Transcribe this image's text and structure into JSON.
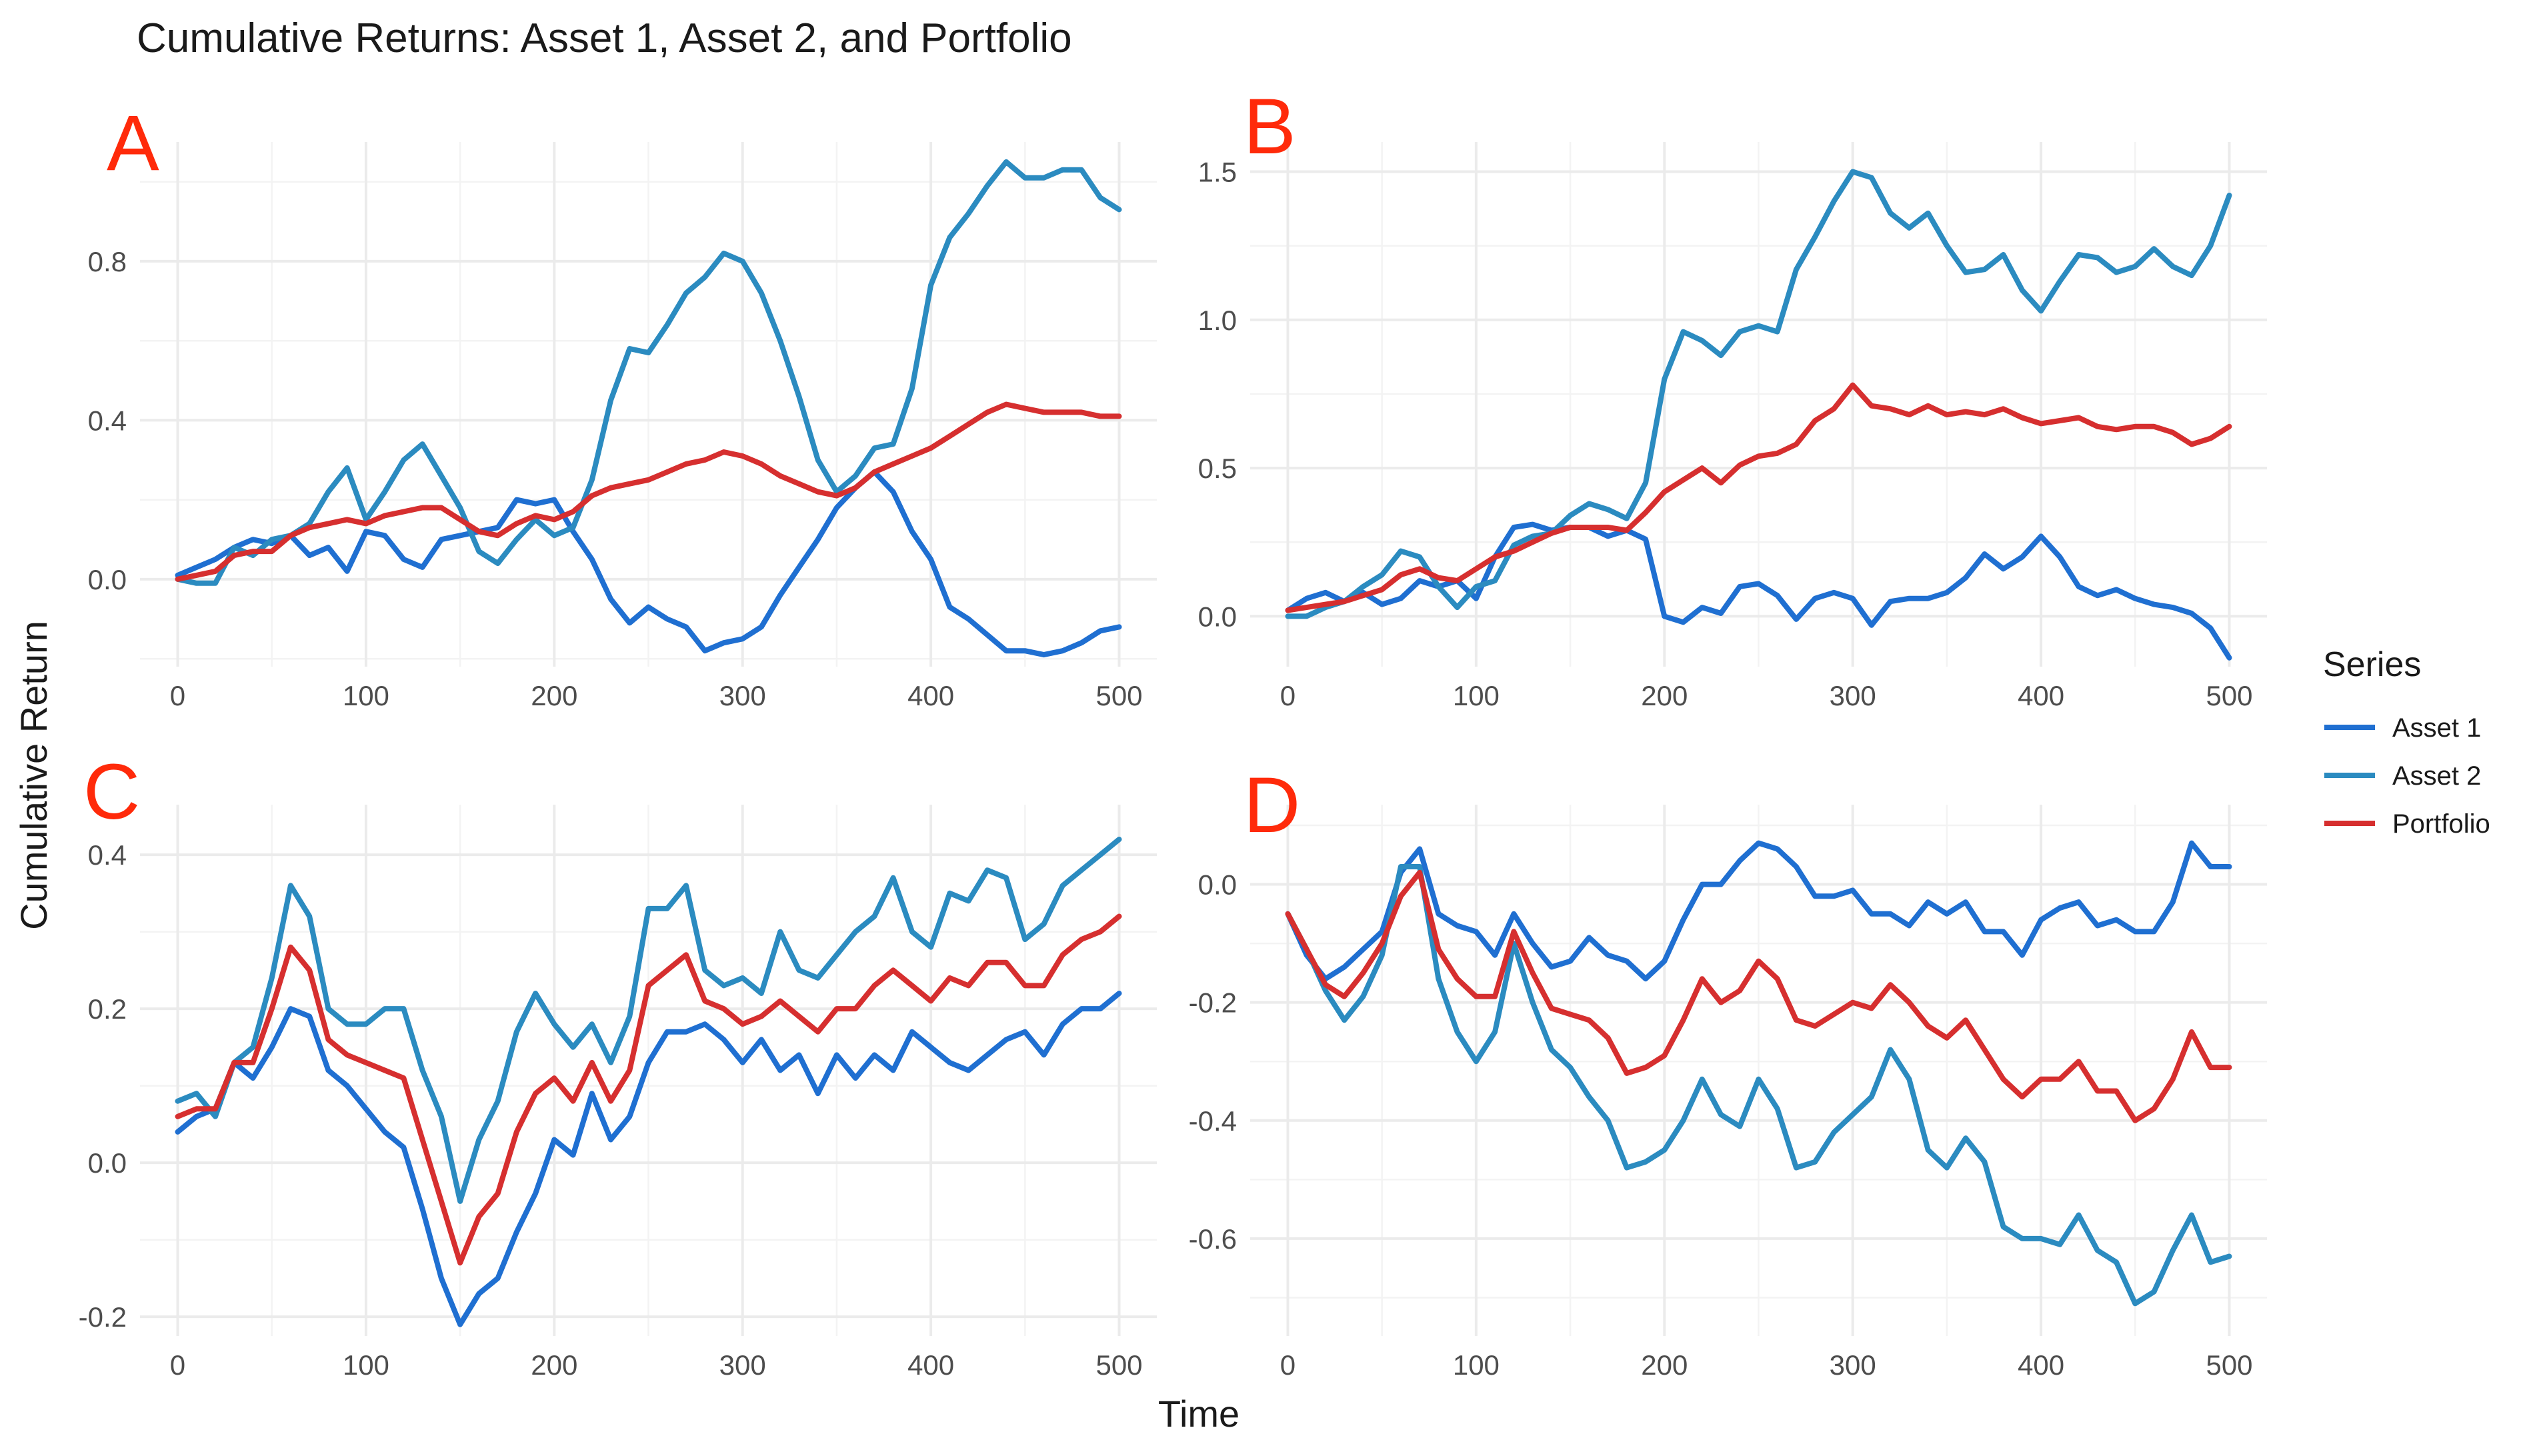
{
  "title": "Cumulative Returns: Asset 1, Asset 2, and Portfolio",
  "xlabel": "Time",
  "ylabel": "Cumulative Return",
  "legend": {
    "title": "Series",
    "placement": "right",
    "items": [
      {
        "name": "Asset 1",
        "color": "#1f6fd1"
      },
      {
        "name": "Asset 2",
        "color": "#2b8bc0"
      },
      {
        "name": "Portfolio",
        "color": "#d62f2f"
      }
    ]
  },
  "chart_data": [
    {
      "type": "line",
      "panel": "A",
      "xlim": [
        -20,
        520
      ],
      "ylim": [
        -0.22,
        1.1
      ],
      "x_ticks": [
        0,
        100,
        200,
        300,
        400,
        500
      ],
      "y_ticks": [
        0.0,
        0.4,
        0.8
      ],
      "y_tick_labels": [
        "0.0",
        "0.4",
        "0.8"
      ],
      "grid": true,
      "x": [
        0,
        10,
        20,
        30,
        40,
        50,
        60,
        70,
        80,
        90,
        100,
        110,
        120,
        130,
        140,
        150,
        160,
        170,
        180,
        190,
        200,
        210,
        220,
        230,
        240,
        250,
        260,
        270,
        280,
        290,
        300,
        310,
        320,
        330,
        340,
        350,
        360,
        370,
        380,
        390,
        400,
        410,
        420,
        430,
        440,
        450,
        460,
        470,
        480,
        490,
        500
      ],
      "series": [
        {
          "name": "Asset 1",
          "values": [
            0.01,
            0.03,
            0.05,
            0.08,
            0.1,
            0.09,
            0.11,
            0.06,
            0.08,
            0.02,
            0.12,
            0.11,
            0.05,
            0.03,
            0.1,
            0.11,
            0.12,
            0.13,
            0.2,
            0.19,
            0.2,
            0.12,
            0.05,
            -0.05,
            -0.11,
            -0.07,
            -0.1,
            -0.12,
            -0.18,
            -0.16,
            -0.15,
            -0.12,
            -0.04,
            0.03,
            0.1,
            0.18,
            0.23,
            0.27,
            0.22,
            0.12,
            0.05,
            -0.07,
            -0.1,
            -0.14,
            -0.18,
            -0.18,
            -0.19,
            -0.18,
            -0.16,
            -0.13,
            -0.12
          ]
        },
        {
          "name": "Asset 2",
          "values": [
            0.0,
            -0.01,
            -0.01,
            0.08,
            0.06,
            0.1,
            0.11,
            0.14,
            0.22,
            0.28,
            0.15,
            0.22,
            0.3,
            0.34,
            0.26,
            0.18,
            0.07,
            0.04,
            0.1,
            0.15,
            0.11,
            0.13,
            0.25,
            0.45,
            0.58,
            0.57,
            0.64,
            0.72,
            0.76,
            0.82,
            0.8,
            0.72,
            0.6,
            0.46,
            0.3,
            0.22,
            0.26,
            0.33,
            0.34,
            0.48,
            0.74,
            0.86,
            0.92,
            0.99,
            1.05,
            1.01,
            1.01,
            1.03,
            1.03,
            0.96,
            0.93
          ]
        },
        {
          "name": "Portfolio",
          "values": [
            0.0,
            0.01,
            0.02,
            0.06,
            0.07,
            0.07,
            0.11,
            0.13,
            0.14,
            0.15,
            0.14,
            0.16,
            0.17,
            0.18,
            0.18,
            0.15,
            0.12,
            0.11,
            0.14,
            0.16,
            0.15,
            0.17,
            0.21,
            0.23,
            0.24,
            0.25,
            0.27,
            0.29,
            0.3,
            0.32,
            0.31,
            0.29,
            0.26,
            0.24,
            0.22,
            0.21,
            0.23,
            0.27,
            0.29,
            0.31,
            0.33,
            0.36,
            0.39,
            0.42,
            0.44,
            0.43,
            0.42,
            0.42,
            0.42,
            0.41,
            0.41
          ]
        }
      ]
    },
    {
      "type": "line",
      "panel": "B",
      "xlim": [
        -20,
        520
      ],
      "ylim": [
        -0.17,
        1.6
      ],
      "x_ticks": [
        0,
        100,
        200,
        300,
        400,
        500
      ],
      "y_ticks": [
        0.0,
        0.5,
        1.0,
        1.5
      ],
      "y_tick_labels": [
        "0.0",
        "0.5",
        "1.0",
        "1.5"
      ],
      "grid": true,
      "x": [
        0,
        10,
        20,
        30,
        40,
        50,
        60,
        70,
        80,
        90,
        100,
        110,
        120,
        130,
        140,
        150,
        160,
        170,
        180,
        190,
        200,
        210,
        220,
        230,
        240,
        250,
        260,
        270,
        280,
        290,
        300,
        310,
        320,
        330,
        340,
        350,
        360,
        370,
        380,
        390,
        400,
        410,
        420,
        430,
        440,
        450,
        460,
        470,
        480,
        490,
        500
      ],
      "series": [
        {
          "name": "Asset 1",
          "values": [
            0.02,
            0.06,
            0.08,
            0.05,
            0.08,
            0.04,
            0.06,
            0.12,
            0.1,
            0.12,
            0.06,
            0.2,
            0.3,
            0.31,
            0.29,
            0.3,
            0.3,
            0.27,
            0.29,
            0.26,
            0.0,
            -0.02,
            0.03,
            0.01,
            0.1,
            0.11,
            0.07,
            -0.01,
            0.06,
            0.08,
            0.06,
            -0.03,
            0.05,
            0.06,
            0.06,
            0.08,
            0.13,
            0.21,
            0.16,
            0.2,
            0.27,
            0.2,
            0.1,
            0.07,
            0.09,
            0.06,
            0.04,
            0.03,
            0.01,
            -0.04,
            -0.14
          ]
        },
        {
          "name": "Asset 2",
          "values": [
            0.0,
            0.0,
            0.03,
            0.05,
            0.1,
            0.14,
            0.22,
            0.2,
            0.1,
            0.03,
            0.1,
            0.12,
            0.24,
            0.27,
            0.28,
            0.34,
            0.38,
            0.36,
            0.33,
            0.45,
            0.8,
            0.96,
            0.93,
            0.88,
            0.96,
            0.98,
            0.96,
            1.17,
            1.28,
            1.4,
            1.5,
            1.48,
            1.36,
            1.31,
            1.36,
            1.25,
            1.16,
            1.17,
            1.22,
            1.1,
            1.03,
            1.13,
            1.22,
            1.21,
            1.16,
            1.18,
            1.24,
            1.18,
            1.15,
            1.25,
            1.42
          ]
        },
        {
          "name": "Portfolio",
          "values": [
            0.02,
            0.03,
            0.04,
            0.05,
            0.07,
            0.09,
            0.14,
            0.16,
            0.13,
            0.12,
            0.16,
            0.2,
            0.22,
            0.25,
            0.28,
            0.3,
            0.3,
            0.3,
            0.29,
            0.35,
            0.42,
            0.46,
            0.5,
            0.45,
            0.51,
            0.54,
            0.55,
            0.58,
            0.66,
            0.7,
            0.78,
            0.71,
            0.7,
            0.68,
            0.71,
            0.68,
            0.69,
            0.68,
            0.7,
            0.67,
            0.65,
            0.66,
            0.67,
            0.64,
            0.63,
            0.64,
            0.64,
            0.62,
            0.58,
            0.6,
            0.64
          ]
        }
      ]
    },
    {
      "type": "line",
      "panel": "C",
      "xlim": [
        -20,
        520
      ],
      "ylim": [
        -0.225,
        0.465
      ],
      "x_ticks": [
        0,
        100,
        200,
        300,
        400,
        500
      ],
      "y_ticks": [
        -0.2,
        0.0,
        0.2,
        0.4
      ],
      "y_tick_labels": [
        "-0.2",
        "0.0",
        "0.2",
        "0.4"
      ],
      "grid": true,
      "x": [
        0,
        10,
        20,
        30,
        40,
        50,
        60,
        70,
        80,
        90,
        100,
        110,
        120,
        130,
        140,
        150,
        160,
        170,
        180,
        190,
        200,
        210,
        220,
        230,
        240,
        250,
        260,
        270,
        280,
        290,
        300,
        310,
        320,
        330,
        340,
        350,
        360,
        370,
        380,
        390,
        400,
        410,
        420,
        430,
        440,
        450,
        460,
        470,
        480,
        490,
        500
      ],
      "series": [
        {
          "name": "Asset 1",
          "values": [
            0.04,
            0.06,
            0.07,
            0.13,
            0.11,
            0.15,
            0.2,
            0.19,
            0.12,
            0.1,
            0.07,
            0.04,
            0.02,
            -0.06,
            -0.15,
            -0.21,
            -0.17,
            -0.15,
            -0.09,
            -0.04,
            0.03,
            0.01,
            0.09,
            0.03,
            0.06,
            0.13,
            0.17,
            0.17,
            0.18,
            0.16,
            0.13,
            0.16,
            0.12,
            0.14,
            0.09,
            0.14,
            0.11,
            0.14,
            0.12,
            0.17,
            0.15,
            0.13,
            0.12,
            0.14,
            0.16,
            0.17,
            0.14,
            0.18,
            0.2,
            0.2,
            0.22
          ]
        },
        {
          "name": "Asset 2",
          "values": [
            0.08,
            0.09,
            0.06,
            0.13,
            0.15,
            0.24,
            0.36,
            0.32,
            0.2,
            0.18,
            0.18,
            0.2,
            0.2,
            0.12,
            0.06,
            -0.05,
            0.03,
            0.08,
            0.17,
            0.22,
            0.18,
            0.15,
            0.18,
            0.13,
            0.19,
            0.33,
            0.33,
            0.36,
            0.25,
            0.23,
            0.24,
            0.22,
            0.3,
            0.25,
            0.24,
            0.27,
            0.3,
            0.32,
            0.37,
            0.3,
            0.28,
            0.35,
            0.34,
            0.38,
            0.37,
            0.29,
            0.31,
            0.36,
            0.38,
            0.4,
            0.42
          ]
        },
        {
          "name": "Portfolio",
          "values": [
            0.06,
            0.07,
            0.07,
            0.13,
            0.13,
            0.2,
            0.28,
            0.25,
            0.16,
            0.14,
            0.13,
            0.12,
            0.11,
            0.03,
            -0.05,
            -0.13,
            -0.07,
            -0.04,
            0.04,
            0.09,
            0.11,
            0.08,
            0.13,
            0.08,
            0.12,
            0.23,
            0.25,
            0.27,
            0.21,
            0.2,
            0.18,
            0.19,
            0.21,
            0.19,
            0.17,
            0.2,
            0.2,
            0.23,
            0.25,
            0.23,
            0.21,
            0.24,
            0.23,
            0.26,
            0.26,
            0.23,
            0.23,
            0.27,
            0.29,
            0.3,
            0.32
          ]
        }
      ]
    },
    {
      "type": "line",
      "panel": "D",
      "xlim": [
        -20,
        520
      ],
      "ylim": [
        -0.765,
        0.135
      ],
      "x_ticks": [
        0,
        100,
        200,
        300,
        400,
        500
      ],
      "y_ticks": [
        -0.6,
        -0.4,
        -0.2,
        0.0
      ],
      "y_tick_labels": [
        "-0.6",
        "-0.4",
        "-0.2",
        "0.0"
      ],
      "grid": true,
      "x": [
        0,
        10,
        20,
        30,
        40,
        50,
        60,
        70,
        80,
        90,
        100,
        110,
        120,
        130,
        140,
        150,
        160,
        170,
        180,
        190,
        200,
        210,
        220,
        230,
        240,
        250,
        260,
        270,
        280,
        290,
        300,
        310,
        320,
        330,
        340,
        350,
        360,
        370,
        380,
        390,
        400,
        410,
        420,
        430,
        440,
        450,
        460,
        470,
        480,
        490,
        500
      ],
      "series": [
        {
          "name": "Asset 1",
          "values": [
            -0.05,
            -0.12,
            -0.16,
            -0.14,
            -0.11,
            -0.08,
            0.02,
            0.06,
            -0.05,
            -0.07,
            -0.08,
            -0.12,
            -0.05,
            -0.1,
            -0.14,
            -0.13,
            -0.09,
            -0.12,
            -0.13,
            -0.16,
            -0.13,
            -0.06,
            0.0,
            0.0,
            0.04,
            0.07,
            0.06,
            0.03,
            -0.02,
            -0.02,
            -0.01,
            -0.05,
            -0.05,
            -0.07,
            -0.03,
            -0.05,
            -0.03,
            -0.08,
            -0.08,
            -0.12,
            -0.06,
            -0.04,
            -0.03,
            -0.07,
            -0.06,
            -0.08,
            -0.08,
            -0.03,
            0.07,
            0.03,
            0.03
          ]
        },
        {
          "name": "Asset 2",
          "values": [
            -0.05,
            -0.11,
            -0.18,
            -0.23,
            -0.19,
            -0.12,
            0.03,
            0.03,
            -0.16,
            -0.25,
            -0.3,
            -0.25,
            -0.1,
            -0.2,
            -0.28,
            -0.31,
            -0.36,
            -0.4,
            -0.48,
            -0.47,
            -0.45,
            -0.4,
            -0.33,
            -0.39,
            -0.41,
            -0.33,
            -0.38,
            -0.48,
            -0.47,
            -0.42,
            -0.39,
            -0.36,
            -0.28,
            -0.33,
            -0.45,
            -0.48,
            -0.43,
            -0.47,
            -0.58,
            -0.6,
            -0.6,
            -0.61,
            -0.56,
            -0.62,
            -0.64,
            -0.71,
            -0.69,
            -0.62,
            -0.56,
            -0.64,
            -0.63
          ]
        },
        {
          "name": "Portfolio",
          "values": [
            -0.05,
            -0.11,
            -0.17,
            -0.19,
            -0.15,
            -0.1,
            -0.02,
            0.02,
            -0.11,
            -0.16,
            -0.19,
            -0.19,
            -0.08,
            -0.15,
            -0.21,
            -0.22,
            -0.23,
            -0.26,
            -0.32,
            -0.31,
            -0.29,
            -0.23,
            -0.16,
            -0.2,
            -0.18,
            -0.13,
            -0.16,
            -0.23,
            -0.24,
            -0.22,
            -0.2,
            -0.21,
            -0.17,
            -0.2,
            -0.24,
            -0.26,
            -0.23,
            -0.28,
            -0.33,
            -0.36,
            -0.33,
            -0.33,
            -0.3,
            -0.35,
            -0.35,
            -0.4,
            -0.38,
            -0.33,
            -0.25,
            -0.31,
            -0.31
          ]
        }
      ]
    }
  ]
}
